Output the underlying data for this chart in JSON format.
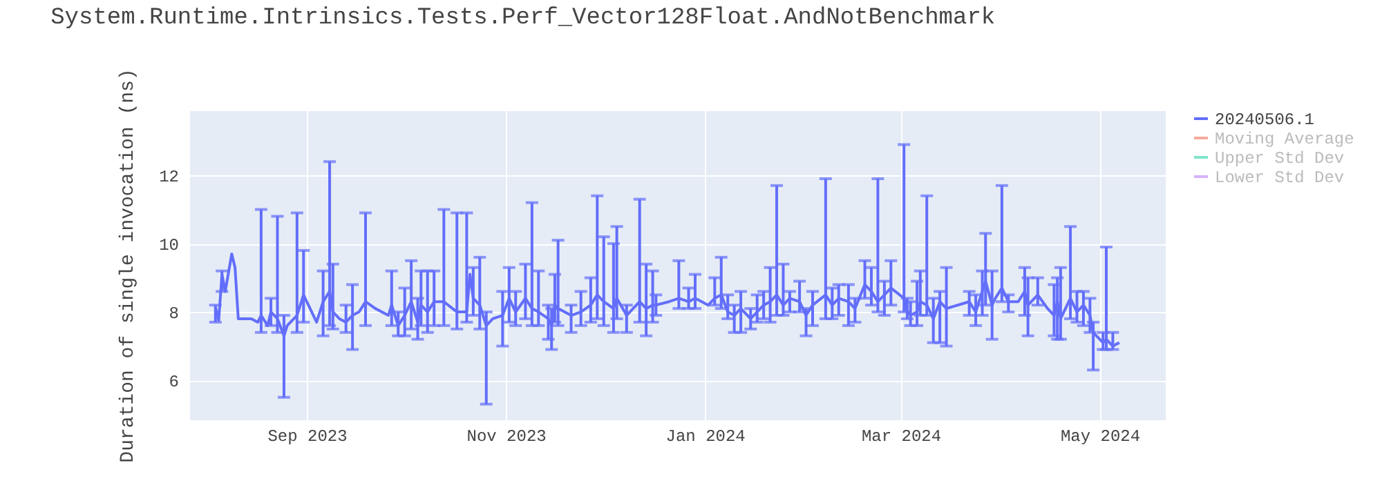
{
  "chart_data": {
    "type": "line",
    "title": "System.Runtime.Intrinsics.Tests.Perf_Vector128Float.AndNotBenchmark",
    "ylabel": "Duration of single invocation (ns)",
    "x": [
      "2023-08-04",
      "2023-08-05",
      "2023-08-06",
      "2023-08-07",
      "2023-08-09",
      "2023-08-10",
      "2023-08-11",
      "2023-08-15",
      "2023-08-17",
      "2023-08-18",
      "2023-08-20",
      "2023-08-21",
      "2023-08-23",
      "2023-08-25",
      "2023-08-26",
      "2023-08-29",
      "2023-08-31",
      "2023-09-04",
      "2023-09-06",
      "2023-09-08",
      "2023-09-09",
      "2023-09-11",
      "2023-09-13",
      "2023-09-15",
      "2023-09-17",
      "2023-09-19",
      "2023-09-22",
      "2023-09-26",
      "2023-09-27",
      "2023-09-29",
      "2023-10-01",
      "2023-10-03",
      "2023-10-05",
      "2023-10-06",
      "2023-10-08",
      "2023-10-10",
      "2023-10-13",
      "2023-10-17",
      "2023-10-20",
      "2023-10-21",
      "2023-10-22",
      "2023-10-24",
      "2023-10-26",
      "2023-10-28",
      "2023-10-31",
      "2023-11-02",
      "2023-11-04",
      "2023-11-07",
      "2023-11-09",
      "2023-11-11",
      "2023-11-14",
      "2023-11-15",
      "2023-11-16",
      "2023-11-17",
      "2023-11-21",
      "2023-11-24",
      "2023-11-27",
      "2023-11-29",
      "2023-12-01",
      "2023-12-04",
      "2023-12-05",
      "2023-12-08",
      "2023-12-12",
      "2023-12-14",
      "2023-12-16",
      "2023-12-17",
      "2023-12-21",
      "2023-12-24",
      "2023-12-27",
      "2023-12-29",
      "2024-01-02",
      "2024-01-04",
      "2024-01-06",
      "2024-01-08",
      "2024-01-10",
      "2024-01-12",
      "2024-01-15",
      "2024-01-17",
      "2024-01-19",
      "2024-01-21",
      "2024-01-23",
      "2024-01-25",
      "2024-01-27",
      "2024-01-30",
      "2024-02-01",
      "2024-02-03",
      "2024-02-07",
      "2024-02-09",
      "2024-02-11",
      "2024-02-14",
      "2024-02-16",
      "2024-02-19",
      "2024-02-21",
      "2024-02-23",
      "2024-02-25",
      "2024-02-27",
      "2024-03-02",
      "2024-03-03",
      "2024-03-04",
      "2024-03-06",
      "2024-03-07",
      "2024-03-09",
      "2024-03-11",
      "2024-03-13",
      "2024-03-15",
      "2024-03-22",
      "2024-03-24",
      "2024-03-26",
      "2024-03-27",
      "2024-03-29",
      "2024-03-30",
      "2024-04-01",
      "2024-04-03",
      "2024-04-06",
      "2024-04-08",
      "2024-04-09",
      "2024-04-12",
      "2024-04-15",
      "2024-04-17",
      "2024-04-18",
      "2024-04-19",
      "2024-04-22",
      "2024-04-24",
      "2024-04-26",
      "2024-04-28",
      "2024-04-29",
      "2024-05-02",
      "2024-05-03",
      "2024-05-05",
      "2024-05-07"
    ],
    "series": [
      {
        "name": "20240506.1",
        "color": "#636efa",
        "values": [
          8.15,
          7.75,
          9.1,
          8.6,
          9.7,
          9.3,
          7.8,
          7.8,
          7.7,
          7.9,
          7.6,
          8.0,
          7.8,
          7.3,
          7.6,
          7.9,
          8.5,
          7.7,
          8.3,
          8.6,
          8.0,
          7.8,
          7.7,
          7.9,
          8.0,
          8.3,
          8.1,
          7.9,
          8.2,
          7.6,
          7.9,
          8.3,
          7.7,
          8.2,
          8.0,
          8.3,
          8.3,
          8.0,
          8.0,
          9.1,
          8.4,
          8.2,
          7.6,
          7.8,
          7.9,
          8.4,
          8.0,
          8.4,
          8.1,
          8.0,
          7.8,
          7.6,
          8.2,
          8.1,
          7.9,
          8.0,
          8.2,
          8.5,
          8.3,
          8.1,
          8.4,
          7.9,
          8.3,
          8.1,
          8.2,
          8.2,
          8.3,
          8.4,
          8.3,
          8.4,
          8.2,
          8.4,
          8.5,
          8.0,
          7.9,
          8.1,
          7.8,
          8.0,
          8.2,
          8.3,
          8.5,
          8.2,
          8.4,
          8.3,
          7.9,
          8.2,
          8.5,
          8.2,
          8.4,
          8.3,
          8.1,
          8.8,
          8.6,
          8.3,
          8.5,
          8.7,
          8.4,
          8.0,
          7.9,
          8.0,
          8.3,
          8.2,
          7.8,
          8.3,
          8.1,
          8.3,
          8.0,
          8.6,
          8.9,
          8.2,
          8.4,
          8.7,
          8.3,
          8.3,
          8.6,
          8.2,
          8.5,
          8.1,
          7.9,
          8.3,
          7.8,
          8.4,
          8.0,
          8.2,
          7.9,
          7.4,
          7.1,
          7.2,
          7.0,
          7.1
        ],
        "errors": [
          [
            7.7,
            8.2
          ],
          null,
          [
            8.6,
            9.2
          ],
          null,
          null,
          null,
          null,
          null,
          null,
          [
            7.4,
            11.0
          ],
          null,
          [
            7.6,
            8.4
          ],
          [
            7.4,
            10.8
          ],
          [
            5.5,
            7.9
          ],
          null,
          [
            7.4,
            10.9
          ],
          [
            7.7,
            9.8
          ],
          null,
          [
            7.3,
            9.2
          ],
          [
            7.6,
            12.4
          ],
          [
            7.5,
            9.4
          ],
          null,
          [
            7.4,
            8.2
          ],
          [
            6.9,
            8.8
          ],
          null,
          [
            7.6,
            10.9
          ],
          null,
          null,
          [
            7.6,
            9.2
          ],
          [
            7.3,
            8.0
          ],
          [
            7.3,
            8.7
          ],
          [
            7.5,
            9.5
          ],
          [
            7.2,
            8.4
          ],
          [
            7.6,
            9.2
          ],
          [
            7.4,
            9.2
          ],
          [
            7.6,
            9.2
          ],
          [
            7.6,
            11.0
          ],
          [
            7.5,
            10.9
          ],
          [
            7.7,
            10.9
          ],
          null,
          [
            7.9,
            9.3
          ],
          [
            7.5,
            9.6
          ],
          [
            5.3,
            8.0
          ],
          null,
          [
            7.0,
            8.6
          ],
          [
            7.7,
            9.3
          ],
          [
            7.6,
            8.6
          ],
          [
            7.8,
            9.4
          ],
          [
            7.6,
            11.2
          ],
          [
            7.6,
            9.2
          ],
          [
            7.2,
            8.2
          ],
          [
            6.9,
            8.1
          ],
          [
            7.7,
            9.1
          ],
          [
            7.6,
            10.1
          ],
          [
            7.4,
            8.2
          ],
          [
            7.6,
            8.6
          ],
          [
            7.7,
            9.0
          ],
          [
            7.8,
            11.4
          ],
          [
            7.6,
            10.2
          ],
          [
            7.4,
            10.0
          ],
          [
            7.8,
            10.5
          ],
          [
            7.4,
            8.2
          ],
          [
            7.7,
            11.3
          ],
          [
            7.3,
            9.4
          ],
          [
            7.7,
            9.2
          ],
          [
            7.9,
            8.5
          ],
          null,
          [
            8.1,
            9.5
          ],
          [
            8.1,
            8.7
          ],
          [
            8.1,
            9.1
          ],
          null,
          [
            8.2,
            9.0
          ],
          [
            8.1,
            9.6
          ],
          [
            7.8,
            8.5
          ],
          [
            7.4,
            8.2
          ],
          [
            7.4,
            8.6
          ],
          [
            7.5,
            8.1
          ],
          [
            7.7,
            8.5
          ],
          [
            7.8,
            8.6
          ],
          [
            7.7,
            9.3
          ],
          [
            7.9,
            11.7
          ],
          [
            7.9,
            9.4
          ],
          [
            8.0,
            8.6
          ],
          [
            8.0,
            8.9
          ],
          [
            7.3,
            8.1
          ],
          [
            7.6,
            8.6
          ],
          [
            7.8,
            11.9
          ],
          [
            7.8,
            8.7
          ],
          [
            7.9,
            8.8
          ],
          [
            7.6,
            8.8
          ],
          [
            7.7,
            8.4
          ],
          [
            8.4,
            9.5
          ],
          [
            8.2,
            9.3
          ],
          [
            8.0,
            11.9
          ],
          [
            7.9,
            8.9
          ],
          [
            8.2,
            9.5
          ],
          [
            8.0,
            12.9
          ],
          [
            7.8,
            8.4
          ],
          [
            7.6,
            8.3
          ],
          [
            7.6,
            8.9
          ],
          [
            7.9,
            9.2
          ],
          [
            7.9,
            11.4
          ],
          [
            7.1,
            8.4
          ],
          [
            7.1,
            8.6
          ],
          [
            7.0,
            9.3
          ],
          [
            7.9,
            8.6
          ],
          [
            7.6,
            8.5
          ],
          [
            7.9,
            9.2
          ],
          [
            8.2,
            10.3
          ],
          [
            7.2,
            9.2
          ],
          null,
          [
            8.3,
            11.7
          ],
          [
            8.0,
            8.5
          ],
          null,
          [
            7.9,
            9.3
          ],
          [
            7.3,
            9.0
          ],
          [
            8.2,
            9.0
          ],
          null,
          [
            7.3,
            8.8
          ],
          [
            7.2,
            9.0
          ],
          [
            7.2,
            9.3
          ],
          [
            7.8,
            10.5
          ],
          [
            7.7,
            8.6
          ],
          [
            7.6,
            8.6
          ],
          [
            7.4,
            8.4
          ],
          [
            6.3,
            7.7
          ],
          [
            6.9,
            7.4
          ],
          [
            6.9,
            9.9
          ],
          [
            6.9,
            7.4
          ],
          null
        ]
      },
      {
        "name": "Moving Average",
        "color": "#f5a99b",
        "values": [
          null,
          null,
          null,
          null,
          null,
          null,
          null,
          null,
          null,
          null,
          null,
          null,
          null,
          null,
          null,
          null,
          null,
          null,
          null,
          null,
          null,
          null,
          null,
          null,
          null,
          null,
          null,
          null,
          null,
          null,
          null,
          null,
          null,
          null,
          null,
          null,
          null,
          null,
          null,
          null,
          null,
          null,
          null,
          null,
          null,
          null,
          null,
          null,
          null,
          null,
          null,
          null,
          null,
          null,
          null,
          null,
          null,
          null,
          null,
          null,
          null,
          null,
          null,
          null,
          null,
          null,
          null,
          null,
          null,
          null,
          null,
          null,
          null,
          null,
          null,
          null,
          null,
          null,
          null,
          null,
          null,
          null,
          null,
          null,
          null,
          null,
          null,
          null,
          null,
          null,
          null,
          null,
          null,
          null,
          null,
          null,
          null,
          null,
          null,
          null,
          null,
          null,
          null,
          null,
          null,
          null,
          null,
          null,
          null,
          null,
          null,
          null,
          null,
          null,
          null,
          null,
          null,
          null,
          null,
          null,
          null,
          null,
          null,
          null,
          null,
          null,
          null,
          null,
          null,
          null
        ]
      },
      {
        "name": "Upper Std Dev",
        "color": "#7fe5ca",
        "values": [
          null,
          null,
          null,
          null,
          null,
          null,
          null,
          null,
          null,
          null,
          null,
          null,
          null,
          null,
          null,
          null,
          null,
          null,
          null,
          null,
          null,
          null,
          null,
          null,
          null,
          null,
          null,
          null,
          null,
          null,
          null,
          null,
          null,
          null,
          null,
          null,
          null,
          null,
          null,
          null,
          null,
          null,
          null,
          null,
          null,
          null,
          null,
          null,
          null,
          null,
          null,
          null,
          null,
          null,
          null,
          null,
          null,
          null,
          null,
          null,
          null,
          null,
          null,
          null,
          null,
          null,
          null,
          null,
          null,
          null,
          null,
          null,
          null,
          null,
          null,
          null,
          null,
          null,
          null,
          null,
          null,
          null,
          null,
          null,
          null,
          null,
          null,
          null,
          null,
          null,
          null,
          null,
          null,
          null,
          null,
          null,
          null,
          null,
          null,
          null,
          null,
          null,
          null,
          null,
          null,
          null,
          null,
          null,
          null,
          null,
          null,
          null,
          null,
          null,
          null,
          null,
          null,
          null,
          null,
          null,
          null,
          null,
          null,
          null,
          null,
          null,
          null,
          null,
          null,
          null
        ]
      },
      {
        "name": "Lower Std Dev",
        "color": "#d5b1fc",
        "values": [
          null,
          null,
          null,
          null,
          null,
          null,
          null,
          null,
          null,
          null,
          null,
          null,
          null,
          null,
          null,
          null,
          null,
          null,
          null,
          null,
          null,
          null,
          null,
          null,
          null,
          null,
          null,
          null,
          null,
          null,
          null,
          null,
          null,
          null,
          null,
          null,
          null,
          null,
          null,
          null,
          null,
          null,
          null,
          null,
          null,
          null,
          null,
          null,
          null,
          null,
          null,
          null,
          null,
          null,
          null,
          null,
          null,
          null,
          null,
          null,
          null,
          null,
          null,
          null,
          null,
          null,
          null,
          null,
          null,
          null,
          null,
          null,
          null,
          null,
          null,
          null,
          null,
          null,
          null,
          null,
          null,
          null,
          null,
          null,
          null,
          null,
          null,
          null,
          null,
          null,
          null,
          null,
          null,
          null,
          null,
          null,
          null,
          null,
          null,
          null,
          null,
          null,
          null,
          null,
          null,
          null,
          null,
          null,
          null,
          null,
          null,
          null,
          null,
          null,
          null,
          null,
          null,
          null,
          null,
          null,
          null,
          null,
          null,
          null,
          null,
          null,
          null,
          null,
          null,
          null
        ]
      }
    ],
    "xlim": [
      "2023-07-27",
      "2024-05-21"
    ],
    "xticks": [
      {
        "value": "2023-09-01",
        "label": "Sep 2023"
      },
      {
        "value": "2023-11-01",
        "label": "Nov 2023"
      },
      {
        "value": "2024-01-01",
        "label": "Jan 2024"
      },
      {
        "value": "2024-03-01",
        "label": "Mar 2024"
      },
      {
        "value": "2024-05-01",
        "label": "May 2024"
      }
    ],
    "ylim": [
      4.85,
      13.9
    ],
    "yticks": [
      6,
      8,
      10,
      12
    ],
    "grid": true,
    "legend": "top right",
    "line_style": "solid"
  }
}
